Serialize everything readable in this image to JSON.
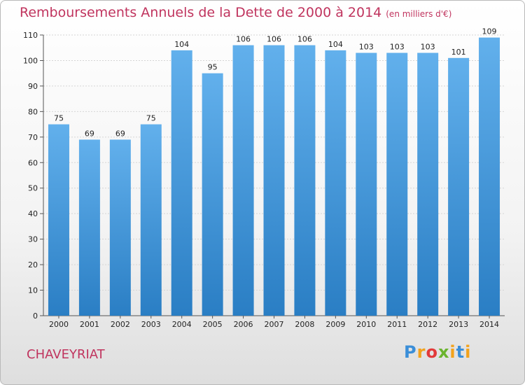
{
  "header": {
    "title": "Remboursements Annuels de la Dette de 2000 à 2014",
    "unit": "(en milliers d'€)"
  },
  "footer": {
    "city": "CHAVEYRIAT",
    "logo": "Proxiti"
  },
  "colors": {
    "bar_light": "#62b0ec",
    "bar_dark": "#2a7ec4",
    "title": "#c0345e",
    "grid": "#d5d5d5"
  },
  "chart_data": {
    "type": "bar",
    "title": "Remboursements Annuels de la Dette de 2000 à 2014",
    "xlabel": "",
    "ylabel": "",
    "categories": [
      "2000",
      "2001",
      "2002",
      "2003",
      "2004",
      "2005",
      "2006",
      "2007",
      "2008",
      "2009",
      "2010",
      "2011",
      "2012",
      "2013",
      "2014"
    ],
    "values": [
      75,
      69,
      69,
      75,
      104,
      95,
      106,
      106,
      106,
      104,
      103,
      103,
      103,
      101,
      109
    ],
    "ylim": [
      0,
      110
    ],
    "yticks": [
      0,
      10,
      20,
      30,
      40,
      50,
      60,
      70,
      80,
      90,
      100,
      110
    ],
    "grid": true
  }
}
